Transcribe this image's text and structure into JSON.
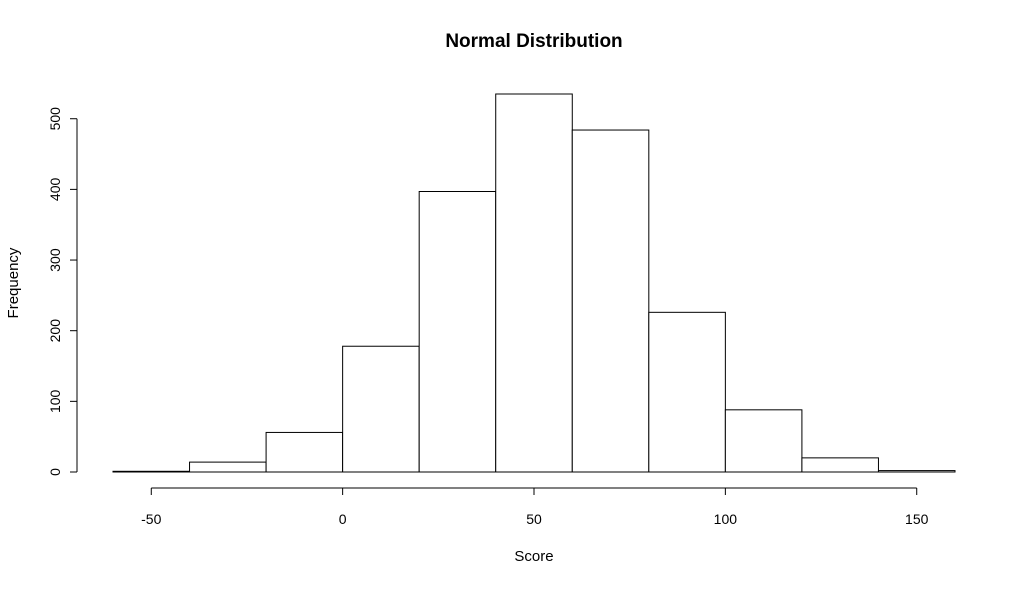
{
  "chart_data": {
    "type": "bar",
    "title": "Normal Distribution",
    "xlabel": "Score",
    "ylabel": "Frequency",
    "bins": [
      {
        "x0": -60,
        "x1": -40,
        "count": 1
      },
      {
        "x0": -40,
        "x1": -20,
        "count": 14
      },
      {
        "x0": -20,
        "x1": 0,
        "count": 56
      },
      {
        "x0": 0,
        "x1": 20,
        "count": 178
      },
      {
        "x0": 20,
        "x1": 40,
        "count": 397
      },
      {
        "x0": 40,
        "x1": 60,
        "count": 535
      },
      {
        "x0": 60,
        "x1": 80,
        "count": 484
      },
      {
        "x0": 80,
        "x1": 100,
        "count": 226
      },
      {
        "x0": 100,
        "x1": 120,
        "count": 88
      },
      {
        "x0": 120,
        "x1": 140,
        "count": 20
      },
      {
        "x0": 140,
        "x1": 160,
        "count": 2
      }
    ],
    "xlim": [
      -60,
      160
    ],
    "ylim": [
      0,
      535
    ],
    "x_ticks": [
      -50,
      0,
      50,
      100,
      150
    ],
    "x_tick_labels": [
      "-50",
      "0",
      "50",
      "100",
      "150"
    ],
    "y_ticks": [
      0,
      100,
      200,
      300,
      400,
      500
    ],
    "y_tick_labels": [
      "0",
      "100",
      "200",
      "300",
      "400",
      "500"
    ],
    "grid": false,
    "bar_fill": "#ffffff",
    "bar_stroke": "#000000"
  }
}
